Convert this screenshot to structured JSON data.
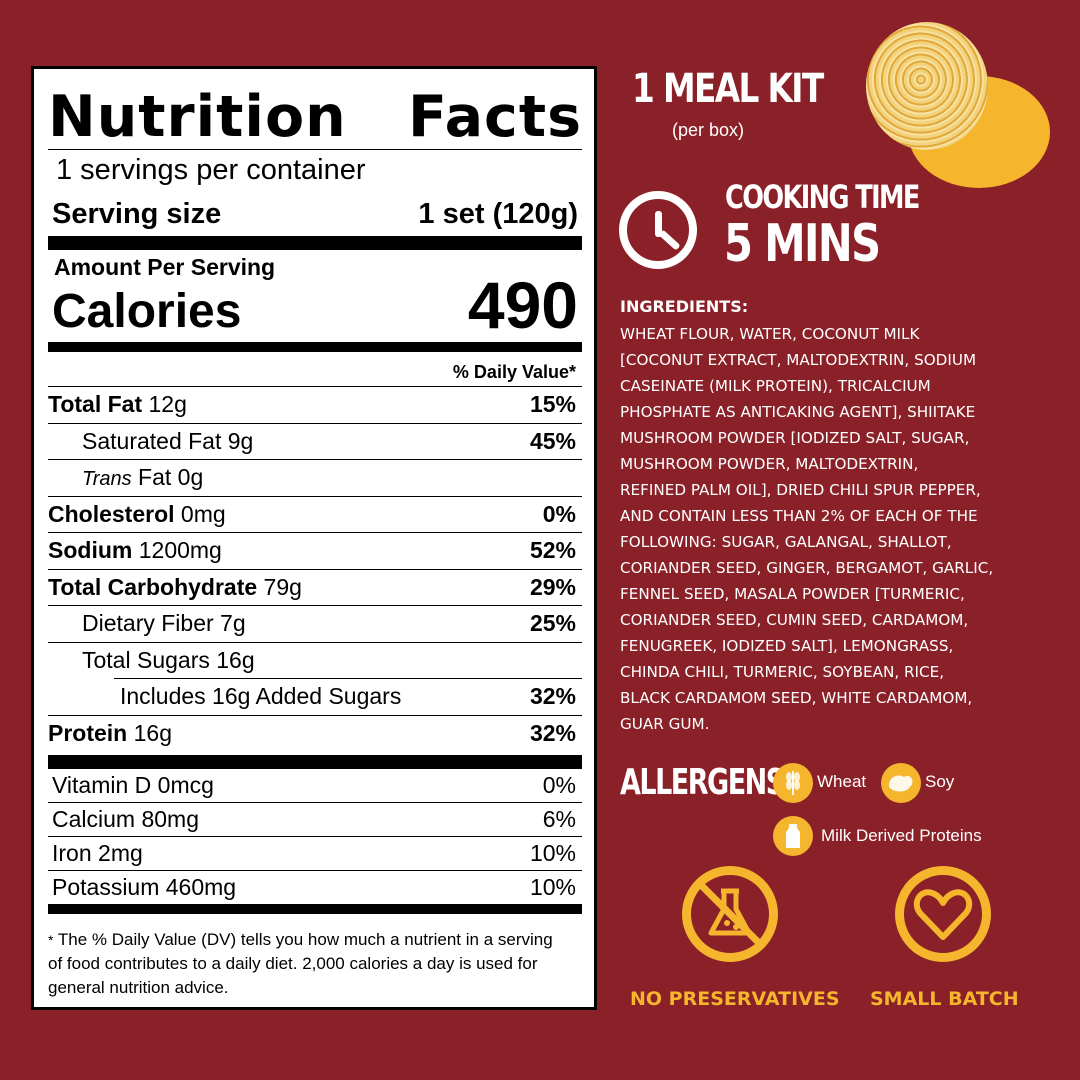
{
  "nutrition": {
    "title_left": "Nutrition",
    "title_right": "Facts",
    "servings": "1 servings per container",
    "serving_size_label": "Serving size",
    "serving_size_value": "1 set (120g)",
    "amount_per_serving": "Amount Per Serving",
    "calories_label": "Calories",
    "calories_value": "490",
    "dv_header": "% Daily Value*",
    "rows": [
      {
        "bold": "Total Fat",
        "rest": " 12g",
        "pct": "15%"
      },
      {
        "bold": "",
        "rest": "Saturated Fat 9g",
        "pct": "45%"
      },
      {
        "italic": "Trans",
        "rest": " Fat 0g",
        "pct": ""
      },
      {
        "bold": "Cholesterol",
        "rest": " 0mg",
        "pct": "0%"
      },
      {
        "bold": "Sodium",
        "rest": " 1200mg",
        "pct": "52%"
      },
      {
        "bold": "Total Carbohydrate",
        "rest": " 79g",
        "pct": "29%"
      },
      {
        "bold": "",
        "rest": "Dietary Fiber 7g",
        "pct": "25%"
      },
      {
        "bold": "",
        "rest": "Total Sugars 16g",
        "pct": ""
      },
      {
        "bold": "",
        "rest": "Includes 16g Added Sugars",
        "pct": "32%"
      },
      {
        "bold": "Protein",
        "rest": " 16g",
        "pct": "32%"
      }
    ],
    "vitamins": [
      {
        "name": "Vitamin D 0mcg",
        "pct": "0%"
      },
      {
        "name": "Calcium 80mg",
        "pct": "6%"
      },
      {
        "name": "Iron 2mg",
        "pct": "10%"
      },
      {
        "name": "Potassium 460mg",
        "pct": "10%"
      }
    ],
    "footnote": "The % Daily Value (DV) tells you how much a nutrient in a serving of food contributes to a daily diet. 2,000 calories a day is used for general nutrition advice."
  },
  "kit": {
    "title": "1 MEAL KIT",
    "subtitle": "(per box)"
  },
  "cooking": {
    "label": "COOKING TIME",
    "value": "5 MINS"
  },
  "ingredients": {
    "title": "INGREDIENTS:",
    "lines": [
      "WHEAT FLOUR, WATER, COCONUT MILK",
      "[COCONUT EXTRACT, MALTODEXTRIN, SODIUM",
      "CASEINATE (MILK PROTEIN), TRICALCIUM",
      "PHOSPHATE AS ANTICAKING AGENT], SHIITAKE",
      "MUSHROOM POWDER [IODIZED SALT, SUGAR,",
      "MUSHROOM POWDER, MALTODEXTRIN,",
      "REFINED PALM OIL], DRIED CHILI SPUR PEPPER,",
      "AND CONTAIN LESS THAN 2% OF EACH OF THE",
      "FOLLOWING: SUGAR, GALANGAL, SHALLOT,",
      "CORIANDER SEED, GINGER, BERGAMOT, GARLIC,",
      "FENNEL SEED, MASALA POWDER [TURMERIC,",
      "CORIANDER SEED, CUMIN SEED, CARDAMOM,",
      "FENUGREEK, IODIZED SALT], LEMONGRASS,",
      "CHINDA CHILI, TURMERIC, SOYBEAN, RICE,",
      "BLACK CARDAMOM SEED, WHITE CARDAMOM,",
      "GUAR GUM."
    ]
  },
  "allergens": {
    "title": "ALLERGENS",
    "items": [
      "Wheat",
      "Soy",
      "Milk Derived Proteins"
    ],
    "icons": [
      "wheat-icon",
      "soy-icon",
      "milk-icon"
    ]
  },
  "badges": {
    "no_preservatives": "NO PRESERVATIVES",
    "small_batch": "SMALL BATCH"
  },
  "colors": {
    "background": "#8B2128",
    "accent": "#F5B52C"
  }
}
